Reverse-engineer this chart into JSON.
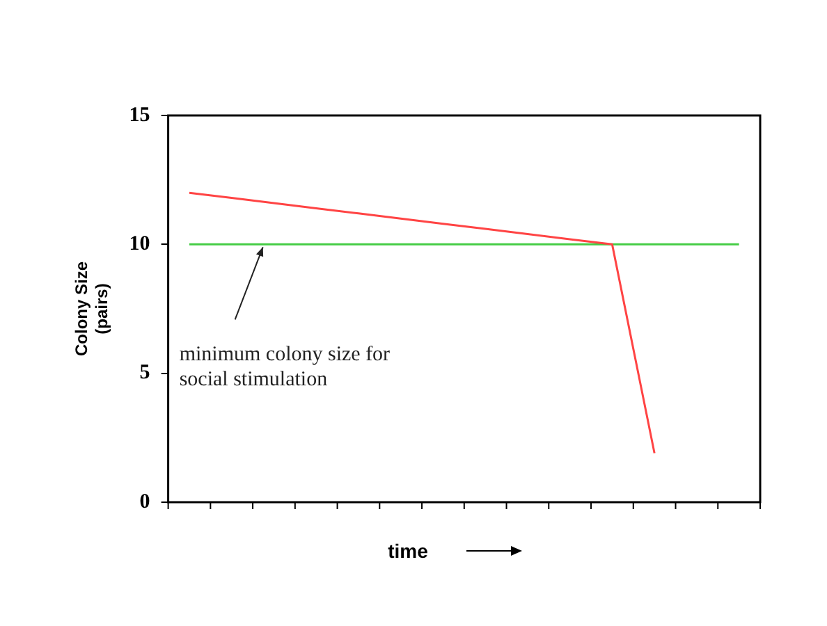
{
  "chart_data": {
    "type": "line",
    "xlabel": "time",
    "ylabel": "Colony Size (pairs)",
    "categories": [
      null,
      null,
      null,
      null,
      null,
      null,
      null,
      null,
      null,
      null,
      null,
      null,
      null,
      null
    ],
    "ylim": [
      0,
      15
    ],
    "yticks": [
      0,
      5,
      10,
      15
    ],
    "tick_labels": "y",
    "grid": false,
    "legend": false,
    "marker": "none",
    "line_style": "solid",
    "series": [
      {
        "color": "#ff4444",
        "values": [
          12,
          11.8,
          11.6,
          11.4,
          11.2,
          11.0,
          10.8,
          10.6,
          10.4,
          10.2,
          10,
          1.9,
          null,
          null
        ]
      },
      {
        "color": "#44cc44",
        "values": [
          10,
          10,
          10,
          10,
          10,
          10,
          10,
          10,
          10,
          10,
          10,
          10,
          10,
          10
        ]
      }
    ],
    "annotations": [
      "minimum colony size for social stimulation"
    ]
  }
}
